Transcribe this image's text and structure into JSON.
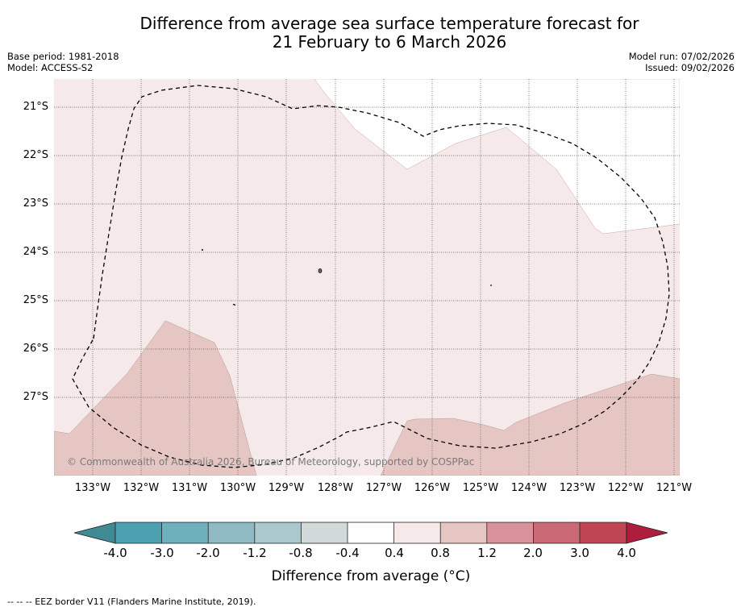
{
  "title": {
    "line1": "Difference from average sea surface temperature forecast for",
    "line2": "21 February to 6 March 2026"
  },
  "meta": {
    "base_period": "Base period: 1981-2018",
    "model": "Model: ACCESS-S2",
    "model_run": "Model run: 07/02/2026",
    "issued": "Issued: 09/02/2026"
  },
  "map": {
    "latitudes": [
      "21°S",
      "22°S",
      "23°S",
      "24°S",
      "25°S",
      "26°S",
      "27°S"
    ],
    "longitudes": [
      "133°W",
      "132°W",
      "131°W",
      "130°W",
      "129°W",
      "128°W",
      "127°W",
      "126°W",
      "125°W",
      "124°W",
      "123°W",
      "122°W",
      "121°W"
    ],
    "copyright": "© Commonwealth of Australia 2026, Bureau of Meteorology, supported by COSPPac",
    "colors": {
      "anomaly_0_4_to_0_8": "#f5e9e9",
      "anomaly_0_8_to_1_2": "#e6c6c3",
      "neutral": "#ffffff",
      "eez_border": "#000000",
      "gridline": "#555555"
    }
  },
  "colorbar": {
    "title": "Difference from average (°C)",
    "ticks": [
      "-4.0",
      "-3.0",
      "-2.0",
      "-1.2",
      "-0.8",
      "-0.4",
      "0.4",
      "0.8",
      "1.2",
      "2.0",
      "3.0",
      "4.0"
    ],
    "colors": [
      "#3f8a93",
      "#4ca1b0",
      "#6eb0bc",
      "#8fbac4",
      "#abc8cd",
      "#d2d9d9",
      "#ffffff",
      "#f5e9e9",
      "#e6c6c3",
      "#d9929a",
      "#cb6a74",
      "#bf4555",
      "#ad1e3d"
    ]
  },
  "footnote": "--  --  -- EEZ border V11 (Flanders Marine Institute, 2019)."
}
